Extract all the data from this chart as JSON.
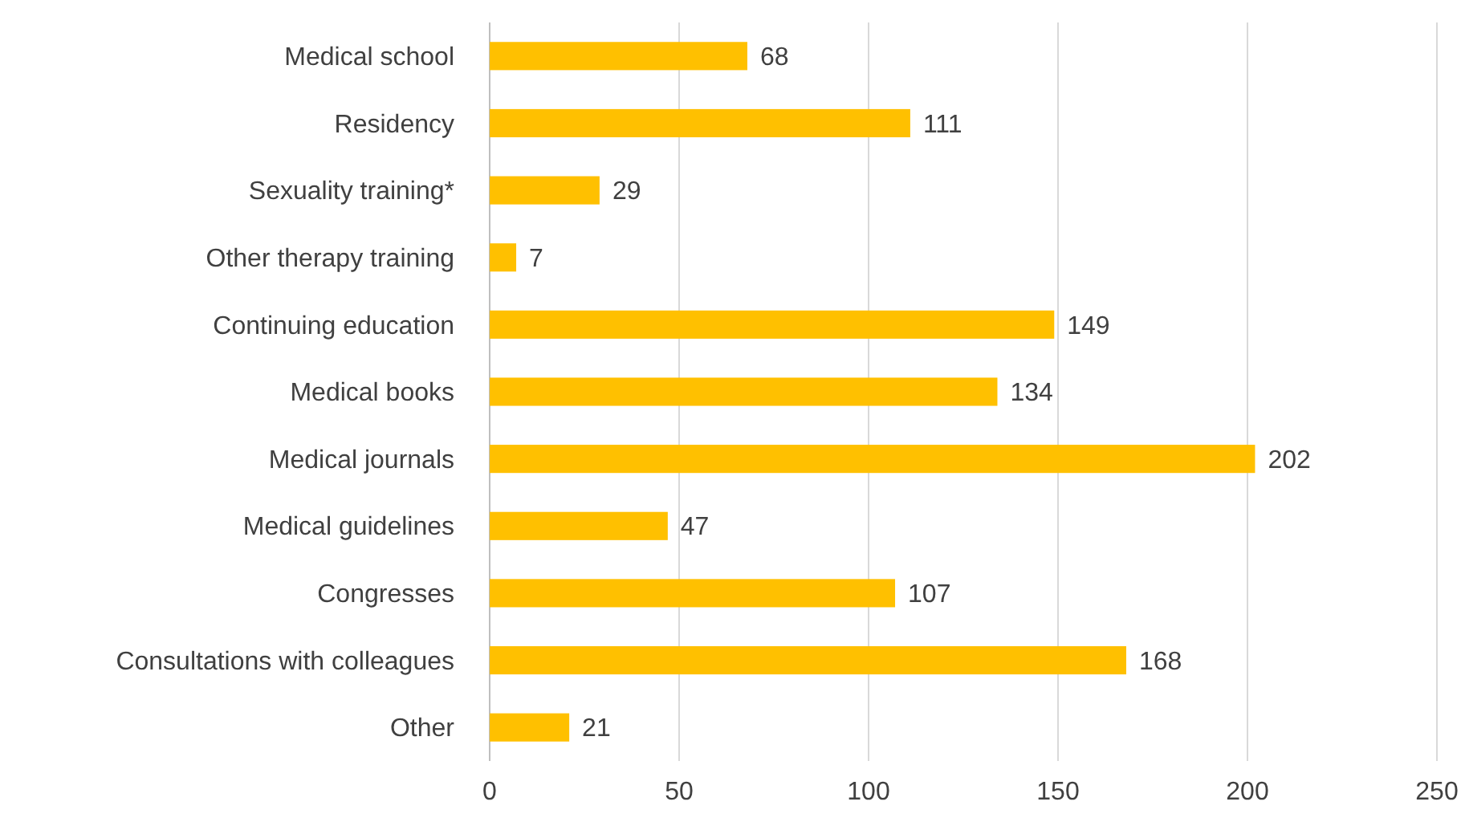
{
  "chart_data": {
    "type": "bar",
    "orientation": "horizontal",
    "categories": [
      "Medical school",
      "Residency",
      "Sexuality training*",
      "Other therapy training",
      "Continuing education",
      "Medical books",
      "Medical journals",
      "Medical guidelines",
      "Congresses",
      "Consultations with colleagues",
      "Other"
    ],
    "values": [
      68,
      111,
      29,
      7,
      149,
      134,
      202,
      47,
      107,
      168,
      21
    ],
    "color": "#ffc000",
    "xlim": [
      0,
      250
    ],
    "xticks": [
      0,
      50,
      100,
      150,
      200,
      250
    ],
    "grid": "x",
    "data_labels": true
  }
}
